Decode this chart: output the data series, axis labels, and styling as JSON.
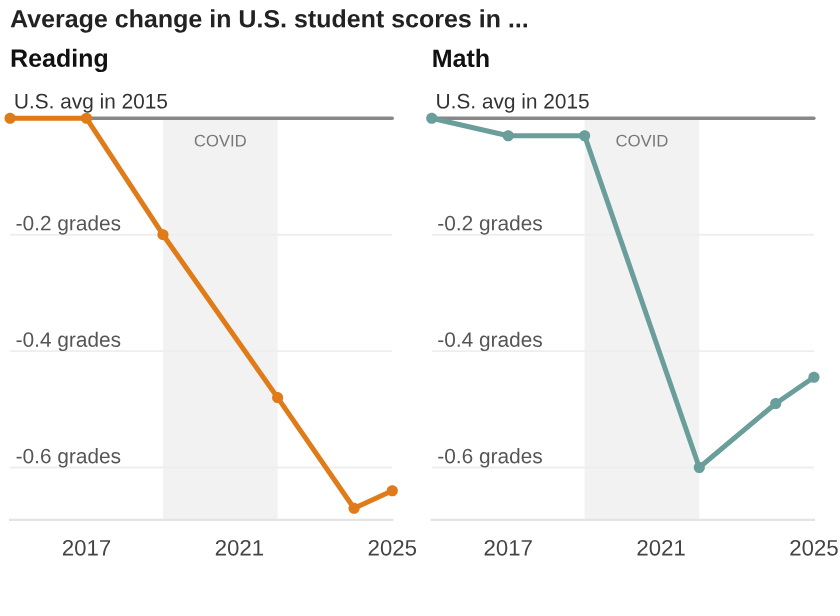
{
  "chart_data": [
    {
      "type": "line",
      "title": "Reading",
      "annotations": [
        "Average change in U.S. student scores in ..."
      ],
      "x": [
        2015,
        2017,
        2019,
        2022,
        2024,
        2025
      ],
      "series": [
        {
          "color": "#e07b1a",
          "values": [
            0,
            0,
            -0.2,
            -0.48,
            -0.67,
            -0.64
          ]
        }
      ],
      "xlim": [
        2015,
        2025
      ],
      "xticks": [
        2017,
        2021,
        2025
      ],
      "ylim": [
        -0.69,
        0
      ],
      "yticks": [
        {
          "value": -0.2,
          "label": "-0.2 grades"
        },
        {
          "value": -0.4,
          "label": "-0.4 grades"
        },
        {
          "value": -0.6,
          "label": "-0.6 grades"
        }
      ],
      "ref_lines": [
        {
          "axis": "y",
          "value": 0,
          "label": "U.S. avg in 2015",
          "color": "#888888"
        }
      ],
      "bands": [
        {
          "axis": "x",
          "from": 2019,
          "to": 2022,
          "label": "COVID",
          "color": "#f2f2f2"
        }
      ],
      "grid": "y",
      "marker": "circle",
      "line_style": "solid"
    },
    {
      "type": "line",
      "title": "Math",
      "x": [
        2015,
        2017,
        2019,
        2022,
        2024,
        2025
      ],
      "series": [
        {
          "color": "#6a9e9a",
          "values": [
            0,
            -0.03,
            -0.03,
            -0.6,
            -0.49,
            -0.445
          ]
        }
      ],
      "xlim": [
        2015,
        2025
      ],
      "xticks": [
        2017,
        2021,
        2025
      ],
      "ylim": [
        -0.69,
        0
      ],
      "yticks": [
        {
          "value": -0.2,
          "label": "-0.2 grades"
        },
        {
          "value": -0.4,
          "label": "-0.4 grades"
        },
        {
          "value": -0.6,
          "label": "-0.6 grades"
        }
      ],
      "ref_lines": [
        {
          "axis": "y",
          "value": 0,
          "label": "U.S. avg in 2015",
          "color": "#888888"
        }
      ],
      "bands": [
        {
          "axis": "x",
          "from": 2019,
          "to": 2022,
          "label": "COVID",
          "color": "#f2f2f2"
        }
      ],
      "grid": "y",
      "marker": "circle",
      "line_style": "solid"
    }
  ]
}
